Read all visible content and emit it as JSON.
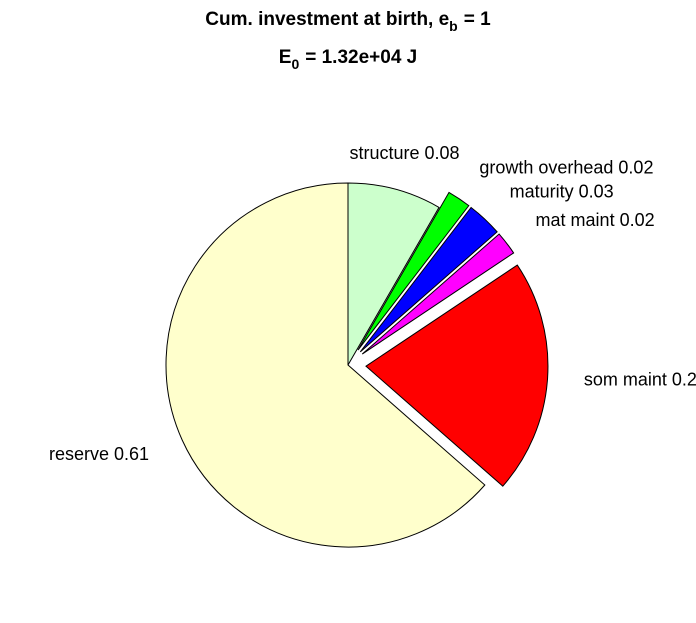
{
  "chart_data": {
    "type": "pie",
    "title": [
      "Cum. investment at birth, e",
      "b",
      "= 1"
    ],
    "subtitle": [
      "E",
      "0",
      "= 1.32e+04 J"
    ],
    "categories": [
      "structure",
      "growth overhead",
      "maturity",
      "mat maint",
      "som maint",
      "reserve"
    ],
    "values": [
      0.08,
      0.02,
      0.03,
      0.02,
      0.2,
      0.61
    ],
    "colors": [
      "#ccffcc",
      "#00ff00",
      "#0000ff",
      "#ff00ff",
      "#ff0000",
      "#ffffcc"
    ],
    "explode": [
      false,
      true,
      true,
      true,
      true,
      false
    ]
  }
}
